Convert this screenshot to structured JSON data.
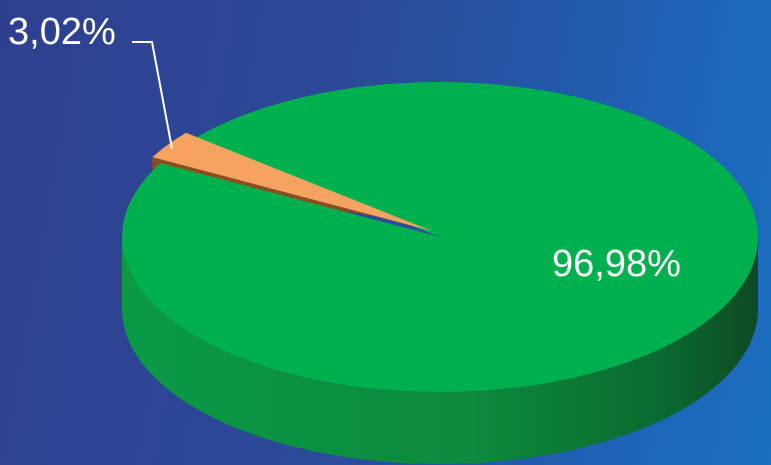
{
  "chart_data": {
    "type": "pie",
    "categories": [
      "",
      ""
    ],
    "values": [
      96.98,
      3.02
    ],
    "data_labels": [
      "96,98%",
      "3,02%"
    ],
    "colors": [
      "#00b04f",
      "#f6a35f"
    ],
    "side_colors": [
      "#04893d",
      "#8a4f1e"
    ],
    "legend": "none",
    "title": ""
  },
  "background": {
    "start_color": "#2f3f8f",
    "end_color": "#1a6fc0"
  }
}
